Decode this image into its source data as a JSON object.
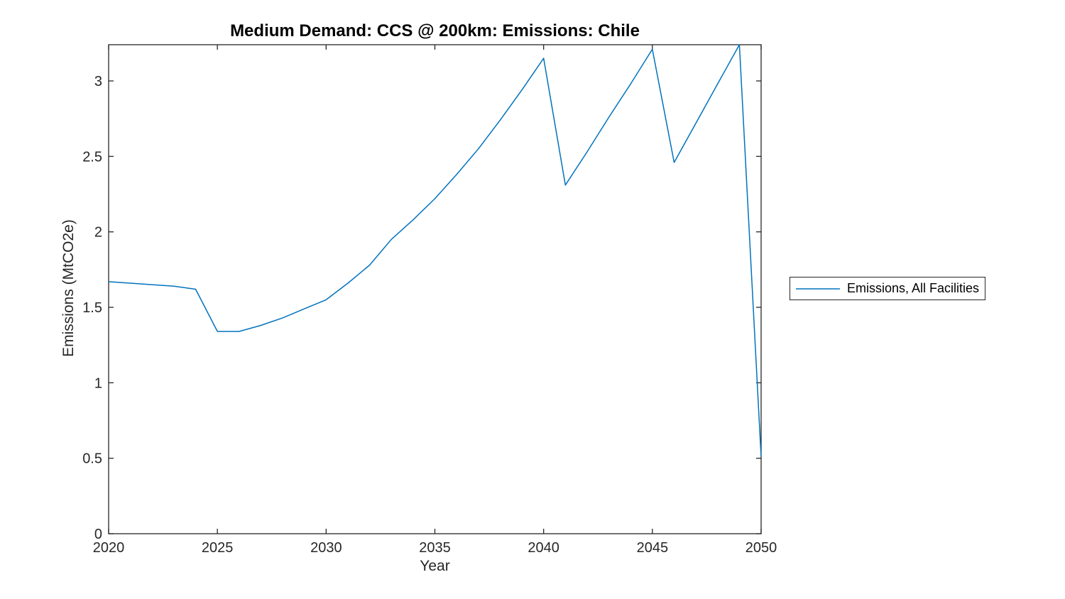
{
  "figure": {
    "background": "#ffffff"
  },
  "colors": {
    "line": "#0072BD",
    "axis": "#262626",
    "title": "#000000"
  },
  "chart_data": {
    "type": "line",
    "title": "Medium Demand: CCS @ 200km: Emissions: Chile",
    "xlabel": "Year",
    "ylabel": "Emissions (MtCO2e)",
    "xlim": [
      2020,
      2050
    ],
    "ylim": [
      0,
      3.24
    ],
    "xticks": [
      2020,
      2025,
      2030,
      2035,
      2040,
      2045,
      2050
    ],
    "yticks": [
      0,
      0.5,
      1,
      1.5,
      2,
      2.5,
      3
    ],
    "grid": false,
    "legend": {
      "position": "outside-right",
      "entries": [
        {
          "label": "Emissions, All Facilities",
          "color": "#0072BD"
        }
      ]
    },
    "series": [
      {
        "name": "Emissions, All Facilities",
        "color": "#0072BD",
        "x": [
          2020,
          2021,
          2022,
          2023,
          2024,
          2025,
          2026,
          2027,
          2028,
          2029,
          2030,
          2031,
          2032,
          2033,
          2034,
          2035,
          2036,
          2037,
          2038,
          2039,
          2040,
          2041,
          2042,
          2043,
          2044,
          2045,
          2046,
          2047,
          2048,
          2049,
          2050
        ],
        "values": [
          1.67,
          1.66,
          1.65,
          1.64,
          1.62,
          1.34,
          1.34,
          1.38,
          1.43,
          1.49,
          1.55,
          1.66,
          1.78,
          1.95,
          2.08,
          2.22,
          2.38,
          2.55,
          2.74,
          2.94,
          3.15,
          2.31,
          2.53,
          2.76,
          2.98,
          3.21,
          2.46,
          2.72,
          2.98,
          3.24,
          0.51
        ]
      }
    ]
  }
}
